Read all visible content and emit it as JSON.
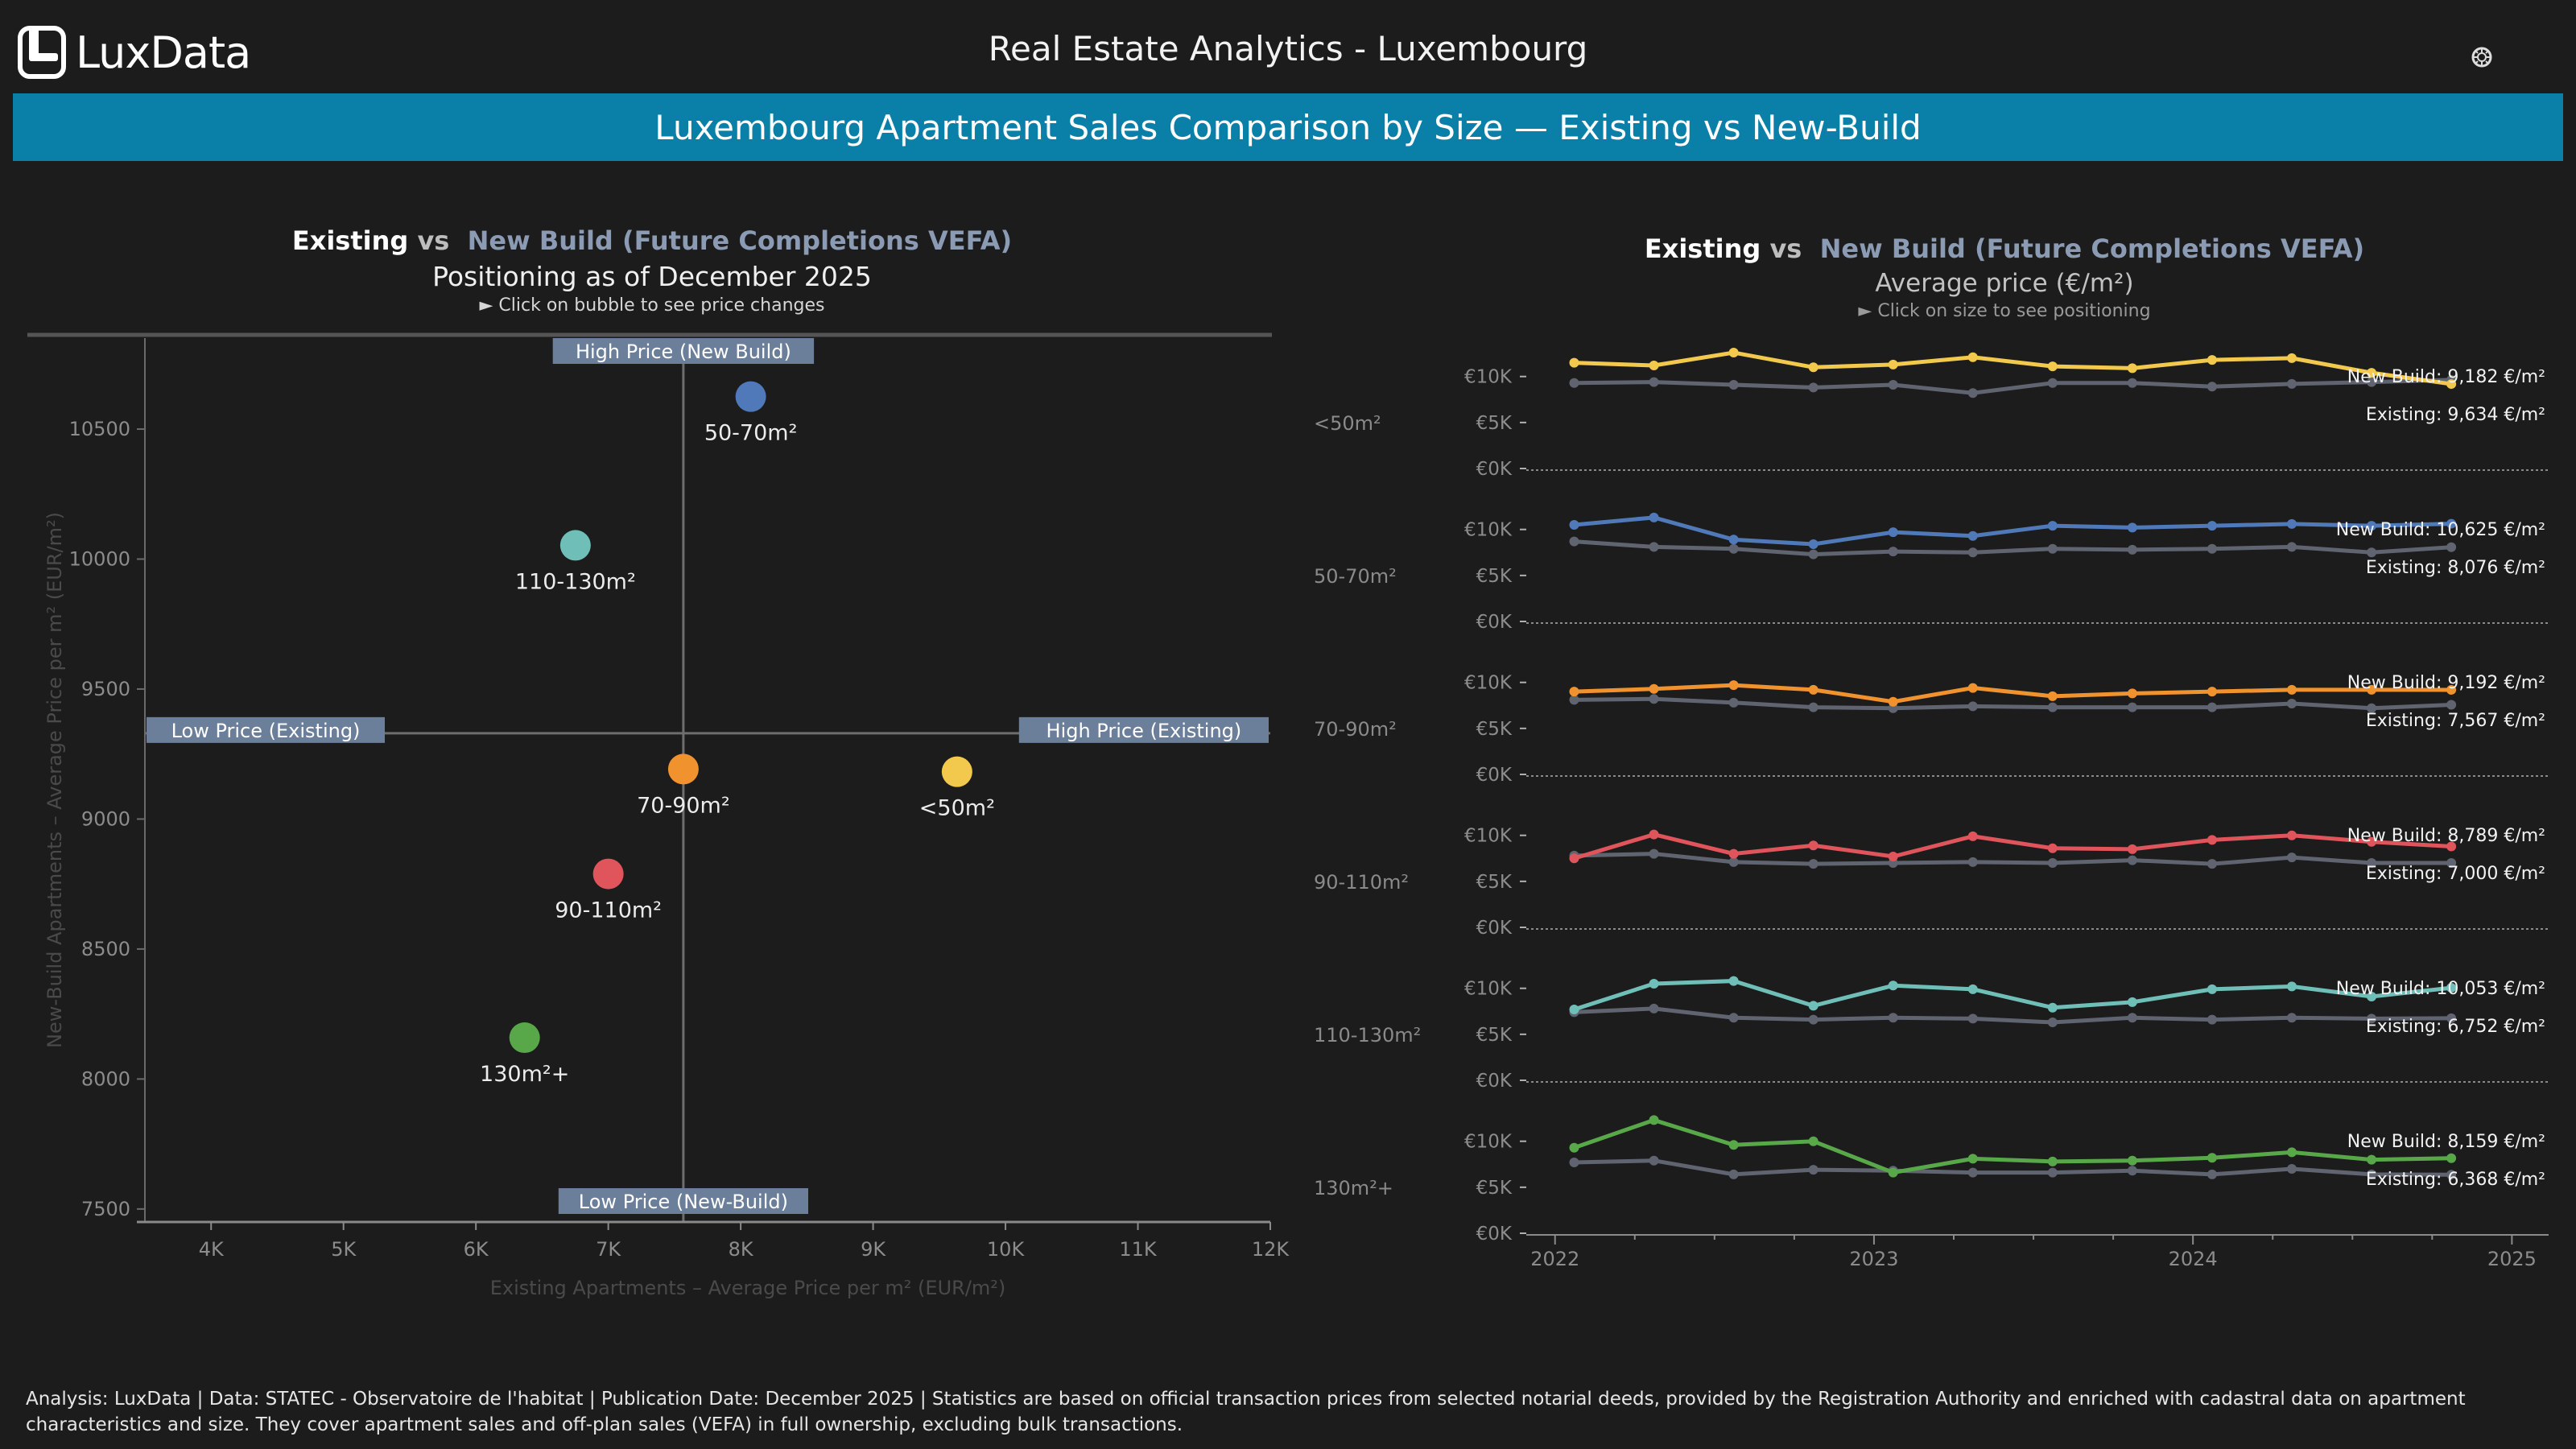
{
  "app": {
    "logo_text": "LuxData",
    "title": "Real Estate Analytics - Luxembourg",
    "settings_icon": "gear-icon"
  },
  "banner": {
    "text": "Luxembourg Apartment Sales Comparison by Size — Existing vs New-Build"
  },
  "left": {
    "title_existing": "Existing",
    "title_vs": "vs",
    "title_newbuild": "New Build (Future Completions VEFA)",
    "subtitle": "Positioning as of December 2025",
    "hint": "► Click on bubble to see price changes",
    "quadrants": {
      "top": "High Price (New Build)",
      "bottom": "Low Price (New-Build)",
      "left": "Low Price (Existing)",
      "right": "High Price (Existing)"
    }
  },
  "right": {
    "title_existing": "Existing",
    "title_vs": "vs",
    "title_newbuild": "New Build (Future Completions VEFA)",
    "subtitle": "Average price (€/m²)",
    "hint": "► Click on size to see positioning"
  },
  "colors": {
    "background": "#1c1c1c",
    "banner": "#0a7fa8",
    "existing_line": "#5f6470",
    "quadrant_label_bg": "#6b7e9a"
  },
  "chart_data": [
    {
      "type": "scatter",
      "xlabel": "Existing Apartments – Average Price per m² (EUR/m²)",
      "ylabel": "New-Build Apartments – Average Price per m² (EUR/m²)",
      "xlim": [
        3500,
        12000
      ],
      "ylim": [
        7450,
        10850
      ],
      "x_ticks": [
        "4K",
        "5K",
        "6K",
        "7K",
        "8K",
        "9K",
        "10K",
        "11K",
        "12K"
      ],
      "y_ticks": [
        "7500",
        "8000",
        "8500",
        "9000",
        "9500",
        "10000",
        "10500"
      ],
      "reference_x": 7567,
      "reference_y": 9330,
      "points": [
        {
          "label": "<50m²",
          "x": 9634,
          "y": 9182,
          "color": "#f2c94c"
        },
        {
          "label": "50-70m²",
          "x": 8076,
          "y": 10625,
          "color": "#4f79b8"
        },
        {
          "label": "70-90m²",
          "x": 7567,
          "y": 9192,
          "color": "#f0922e"
        },
        {
          "label": "90-110m²",
          "x": 7000,
          "y": 8789,
          "color": "#e0545c"
        },
        {
          "label": "110-130m²",
          "x": 6752,
          "y": 10053,
          "color": "#6fbfb8"
        },
        {
          "label": "130m²+",
          "x": 6368,
          "y": 8159,
          "color": "#58a84a"
        }
      ]
    },
    {
      "type": "line",
      "x_ticks": [
        "2022",
        "2023",
        "2024",
        "2025"
      ],
      "xlim": [
        2021.93,
        2025.1
      ],
      "y_ticks": [
        "€10K",
        "€5K",
        "€0K"
      ],
      "ylim": [
        0,
        14000
      ],
      "x": [
        2022.06,
        2022.31,
        2022.56,
        2022.81,
        2023.06,
        2023.31,
        2023.56,
        2023.81,
        2024.06,
        2024.31,
        2024.56,
        2024.81
      ],
      "panels": [
        {
          "size": "<50m²",
          "color": "#f2c94c",
          "new_build": [
            11500,
            11200,
            12600,
            11000,
            11300,
            12100,
            11100,
            10900,
            11800,
            12000,
            10400,
            9182
          ],
          "existing": [
            9300,
            9400,
            9100,
            8800,
            9100,
            8200,
            9300,
            9300,
            8900,
            9200,
            9400,
            9634
          ],
          "label_new": "New Build: 9,182 €/m²",
          "label_existing": "Existing: 9,634 €/m²"
        },
        {
          "size": "50-70m²",
          "color": "#4f79b8",
          "new_build": [
            10500,
            11300,
            8900,
            8400,
            9700,
            9300,
            10400,
            10200,
            10400,
            10600,
            10400,
            10625
          ],
          "existing": [
            8700,
            8100,
            7900,
            7300,
            7600,
            7500,
            7900,
            7800,
            7900,
            8100,
            7500,
            8076
          ],
          "label_new": "New Build: 10,625 €/m²",
          "label_existing": "Existing: 8,076 €/m²"
        },
        {
          "size": "70-90m²",
          "color": "#f0922e",
          "new_build": [
            9000,
            9300,
            9700,
            9200,
            7900,
            9400,
            8500,
            8800,
            9000,
            9200,
            9200,
            9192
          ],
          "existing": [
            8100,
            8200,
            7800,
            7300,
            7200,
            7400,
            7300,
            7300,
            7300,
            7700,
            7200,
            7567
          ],
          "label_new": "New Build: 9,192 €/m²",
          "label_existing": "Existing: 7,567 €/m²"
        },
        {
          "size": "90-110m²",
          "color": "#e0545c",
          "new_build": [
            7500,
            10100,
            8000,
            8900,
            7700,
            9900,
            8600,
            8500,
            9500,
            10000,
            9300,
            8789
          ],
          "existing": [
            7800,
            8000,
            7100,
            6900,
            7000,
            7100,
            7000,
            7300,
            6900,
            7600,
            7000,
            7000
          ],
          "label_new": "New Build: 8,789 €/m²",
          "label_existing": "Existing: 7,000 €/m²"
        },
        {
          "size": "110-130m²",
          "color": "#6fbfb8",
          "new_build": [
            7700,
            10500,
            10800,
            8100,
            10300,
            9900,
            7900,
            8500,
            9900,
            10200,
            9100,
            10053
          ],
          "existing": [
            7400,
            7800,
            6800,
            6600,
            6800,
            6700,
            6300,
            6800,
            6600,
            6800,
            6700,
            6752
          ],
          "label_new": "New Build: 10,053 €/m²",
          "label_existing": "Existing: 6,752 €/m²"
        },
        {
          "size": "130m²+",
          "color": "#58a84a",
          "new_build": [
            9300,
            12300,
            9600,
            10000,
            6600,
            8100,
            7800,
            7900,
            8200,
            8800,
            8000,
            8159
          ],
          "existing": [
            7700,
            7900,
            6400,
            6900,
            6800,
            6600,
            6600,
            6800,
            6400,
            7000,
            6400,
            6368
          ],
          "label_new": "New Build: 8,159 €/m²",
          "label_existing": "Existing: 6,368 €/m²"
        }
      ]
    }
  ],
  "footer": {
    "text": "Analysis: LuxData | Data: STATEC - Observatoire de l'habitat | Publication Date: December 2025 | Statistics are based on official transaction prices from selected notarial deeds, provided by the Registration Authority and enriched with cadastral data on apartment characteristics and size. They cover apartment sales and off-plan sales (VEFA) in full ownership, excluding bulk transactions."
  }
}
